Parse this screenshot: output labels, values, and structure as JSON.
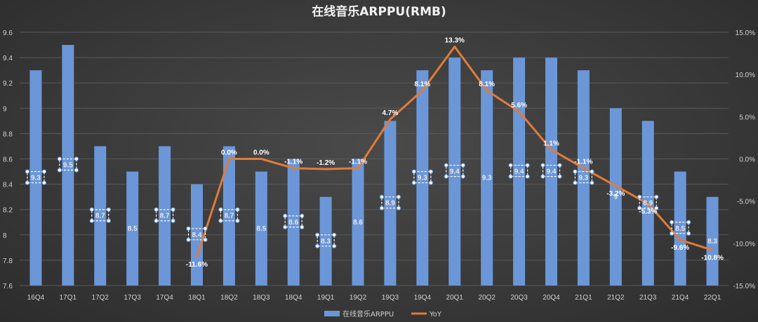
{
  "chart_data": {
    "type": "bar+line",
    "title": "在线音乐ARPPU(RMB)",
    "categories": [
      "16Q4",
      "17Q1",
      "17Q2",
      "17Q3",
      "17Q4",
      "18Q1",
      "18Q2",
      "18Q3",
      "18Q4",
      "19Q1",
      "19Q2",
      "19Q3",
      "19Q4",
      "20Q1",
      "20Q2",
      "20Q3",
      "20Q4",
      "21Q1",
      "21Q2",
      "21Q3",
      "21Q4",
      "22Q1"
    ],
    "series": [
      {
        "name": "在线音乐ARPPU",
        "kind": "bar",
        "axis": "left",
        "color": "#6b97d8",
        "values": [
          9.3,
          9.5,
          8.7,
          8.5,
          8.7,
          8.4,
          8.7,
          8.5,
          8.6,
          8.3,
          8.6,
          8.9,
          9.3,
          9.4,
          9.3,
          9.4,
          9.4,
          9.3,
          9.0,
          8.9,
          8.5,
          8.3
        ],
        "labels": [
          "9.3",
          "9.5",
          "8.7",
          "8.5",
          "8.7",
          "8.4",
          "8.7",
          "8.5",
          "8.6",
          "8.3",
          "8.6",
          "8.9",
          "9.3",
          "9.4",
          "9.3",
          "9.4",
          "9.4",
          "9.3",
          "9",
          "8.9",
          "8.5",
          "8.3"
        ]
      },
      {
        "name": "YoY",
        "kind": "line",
        "axis": "right",
        "color": "#e07b39",
        "values": [
          null,
          null,
          null,
          null,
          null,
          -11.6,
          0.0,
          0.0,
          -1.1,
          -1.2,
          -1.1,
          4.7,
          8.1,
          13.3,
          8.1,
          5.6,
          1.1,
          -1.1,
          -3.2,
          -5.3,
          -9.6,
          -10.8
        ],
        "labels": [
          "",
          "",
          "",
          "",
          "",
          "-11.6%",
          "0.0%",
          "0.0%",
          "-1.1%",
          "-1.2%",
          "-1.1%",
          "4.7%",
          "8.1%",
          "13.3%",
          "8.1%",
          "5.6%",
          "1.1%",
          "-1.1%",
          "-3.2%",
          "-5.3%",
          "-9.6%",
          "-10.8%"
        ]
      }
    ],
    "y_left": {
      "min": 7.6,
      "max": 9.6,
      "ticks": [
        7.6,
        7.8,
        8.0,
        8.2,
        8.4,
        8.6,
        8.8,
        9.0,
        9.2,
        9.4,
        9.6
      ],
      "tick_labels": [
        "7.6",
        "7.8",
        "8",
        "8.2",
        "8.4",
        "8.6",
        "8.8",
        "9",
        "9.2",
        "9.4",
        "9.6"
      ]
    },
    "y_right": {
      "min": -15,
      "max": 15,
      "ticks": [
        -15,
        -10,
        -5,
        0,
        5,
        10,
        15
      ],
      "tick_labels": [
        "-15.0%",
        "-10.0%",
        "-5.0%",
        "0.0%",
        "5.0%",
        "10.0%",
        "15.0%"
      ]
    },
    "selected_label_indices": [
      0,
      1,
      2,
      4,
      5,
      6,
      8,
      9,
      11,
      12,
      13,
      15,
      16,
      17,
      19,
      20
    ],
    "grid": true,
    "legend": {
      "placement": "bottom",
      "entries": [
        "在线音乐ARPPU",
        "YoY"
      ]
    },
    "colors": {
      "background": "#3a3a3a",
      "grid": "#5a5a5a",
      "bar": "#6b97d8",
      "line": "#e07b39",
      "text": "#d0d0d0"
    }
  }
}
